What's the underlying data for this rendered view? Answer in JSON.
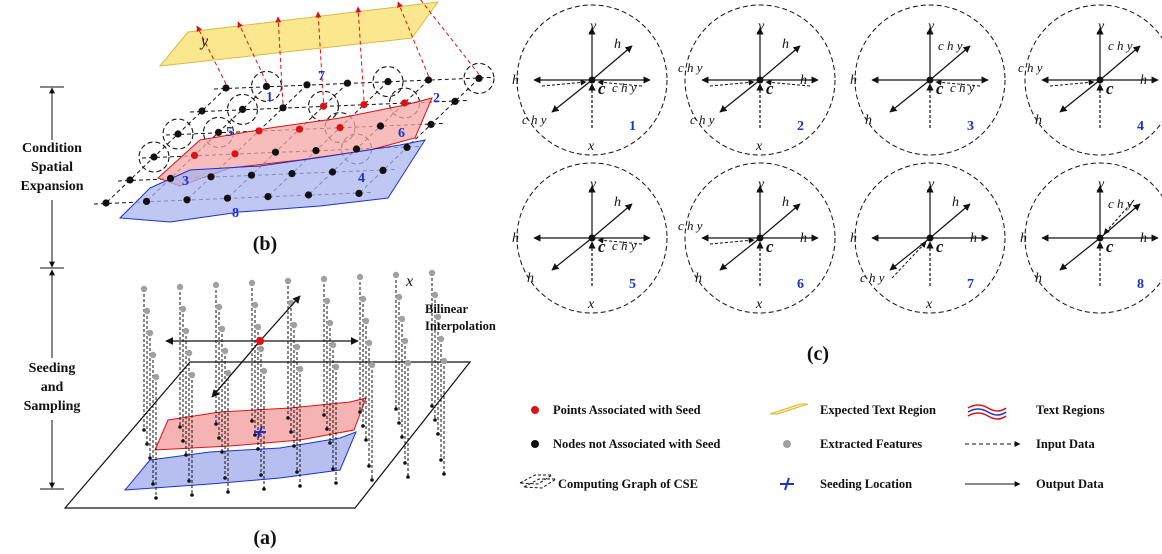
{
  "side_labels": {
    "cse": [
      "Condition",
      "Spatial",
      "Expansion"
    ],
    "ss": [
      "Seeding",
      "and",
      "Sampling"
    ]
  },
  "panels": {
    "a": "(a)",
    "b": "(b)",
    "c": "(c)"
  },
  "axes": {
    "y": "y",
    "x": "x"
  },
  "bilinear": [
    "Bilinear",
    "Interpolation"
  ],
  "region_numbers": [
    "1",
    "2",
    "3",
    "4",
    "5",
    "6",
    "7",
    "8"
  ],
  "cells": [
    {
      "num": "1",
      "center": "c",
      "labels": [
        "y",
        "x",
        "h",
        "h",
        "c h y",
        "c h y"
      ]
    },
    {
      "num": "2"
    },
    {
      "num": "3"
    },
    {
      "num": "4"
    },
    {
      "num": "5"
    },
    {
      "num": "6"
    },
    {
      "num": "7"
    },
    {
      "num": "8"
    }
  ],
  "legend": {
    "red_points": "Points Associated with Seed",
    "black_nodes": "Nodes not Associated with Seed",
    "graph": "Computing Graph of CSE",
    "expected": "Expected Text Region",
    "features": "Extracted Features",
    "seeding": "Seeding Location",
    "text_regions": "Text Regions",
    "input": "Input Data",
    "output": "Output Data"
  },
  "colors": {
    "red": "#e01010",
    "blue": "#1a33cc",
    "yellow": "#fbe88e",
    "pink": "#f4a6a6",
    "lightblue": "#aab4ee",
    "gray": "#a0a0a0"
  }
}
